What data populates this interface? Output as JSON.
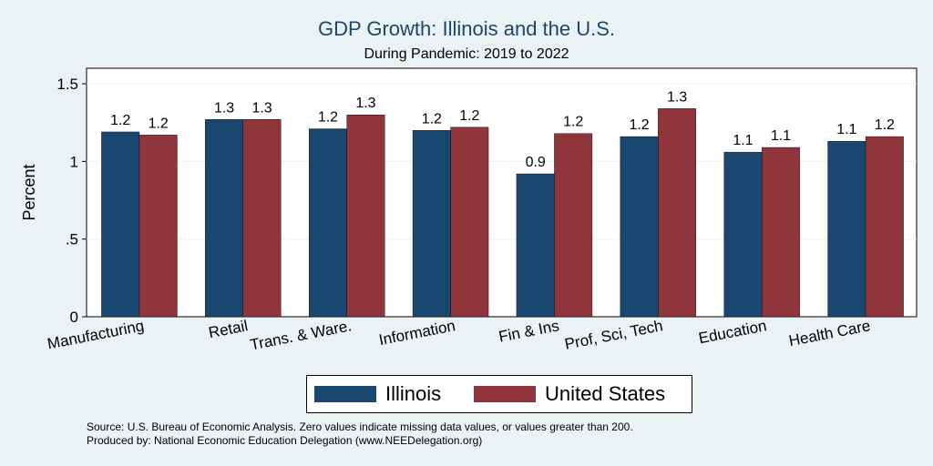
{
  "chart_data": {
    "type": "bar",
    "title": "GDP Growth: Illinois and the U.S.",
    "subtitle": "During Pandemic: 2019 to 2022",
    "ylabel": "Percent",
    "xlabel": "",
    "ylim": [
      0,
      1.6
    ],
    "yticks": [
      {
        "value": 0,
        "label": "0"
      },
      {
        "value": 0.5,
        "label": ".5"
      },
      {
        "value": 1,
        "label": "1"
      },
      {
        "value": 1.5,
        "label": "1.5"
      }
    ],
    "grid": true,
    "legend_position": "bottom",
    "categories": [
      "Manufacturing",
      "Retail",
      "Trans. & Ware.",
      "Information",
      "Fin & Ins",
      "Prof, Sci, Tech",
      "Education",
      "Health Care"
    ],
    "series": [
      {
        "name": "Illinois",
        "color": "#1a476f",
        "values": [
          1.19,
          1.27,
          1.21,
          1.2,
          0.92,
          1.16,
          1.06,
          1.13
        ],
        "labels": [
          "1.2",
          "1.3",
          "1.2",
          "1.2",
          "0.9",
          "1.2",
          "1.1",
          "1.1"
        ]
      },
      {
        "name": "United States",
        "color": "#90353b",
        "values": [
          1.17,
          1.27,
          1.3,
          1.22,
          1.18,
          1.34,
          1.09,
          1.16
        ],
        "labels": [
          "1.2",
          "1.3",
          "1.3",
          "1.2",
          "1.2",
          "1.3",
          "1.1",
          "1.2"
        ]
      }
    ]
  },
  "footnotes": {
    "source": "Source: U.S. Bureau of Economic Analysis. Zero values indicate missing data values, or values greater than 200.",
    "produced": "Produced by: National Economic Education Delegation (www.NEEDelegation.org)"
  }
}
